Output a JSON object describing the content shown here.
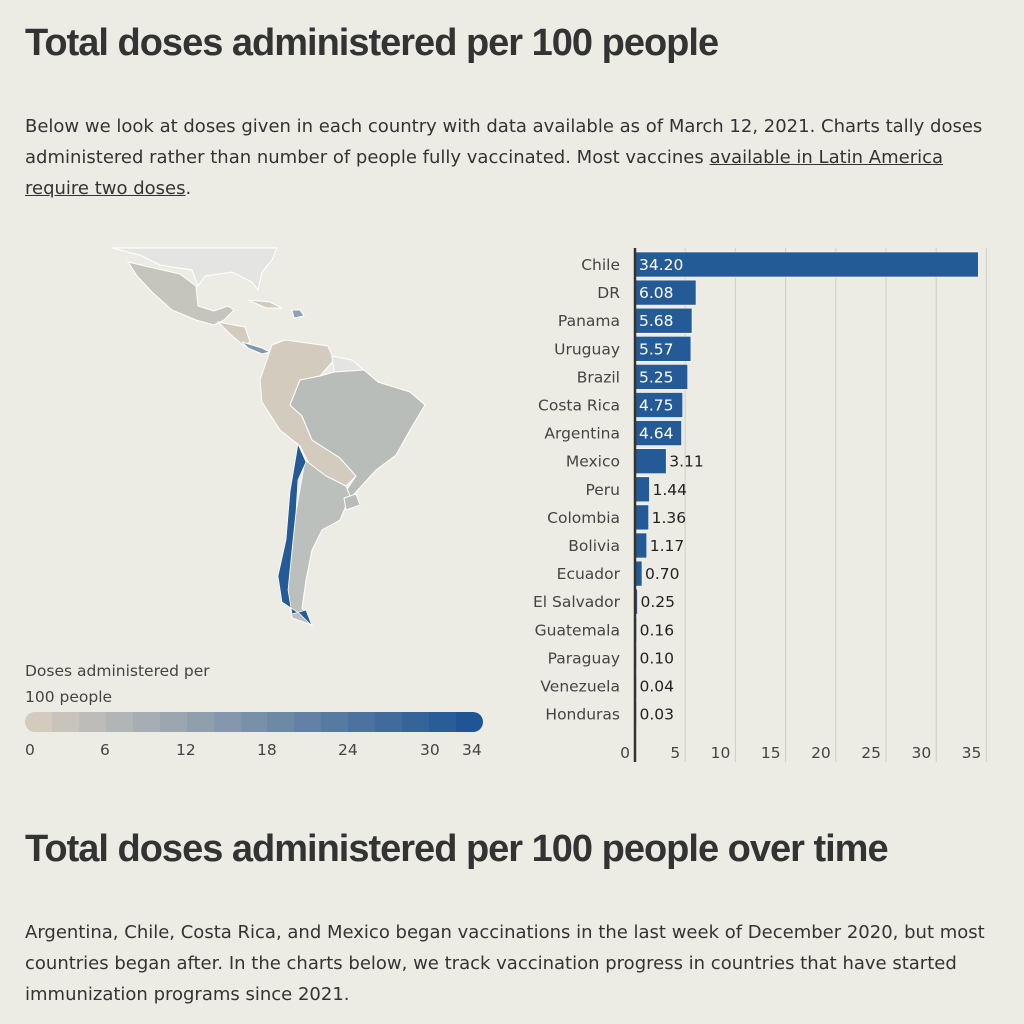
{
  "section1": {
    "title": "Total doses administered per 100 people",
    "intro_before": "Below we look at doses given in each country with data available as of March 12, 2021. Charts tally doses administered rather than number of people fully vaccinated. Most vaccines ",
    "intro_link": "available in Latin America require two doses",
    "intro_after": "."
  },
  "legend": {
    "title_line1": "Doses administered per",
    "title_line2": "100 people",
    "ticks": [
      "0",
      "6",
      "12",
      "18",
      "24",
      "30",
      "34"
    ],
    "color_low": "#d3cbbe",
    "color_high": "#1f5594"
  },
  "section2": {
    "title": "Total doses administered per 100 people over time",
    "intro": "Argentina, Chile, Costa Rica, and Mexico began vaccinations in the last week of December 2020, but most countries began after. In the charts below, we track vaccination progress in countries that have started immunization programs since 2021."
  },
  "chart_data": {
    "type": "bar",
    "orientation": "horizontal",
    "categories": [
      "Chile",
      "DR",
      "Panama",
      "Uruguay",
      "Brazil",
      "Costa Rica",
      "Argentina",
      "Mexico",
      "Peru",
      "Colombia",
      "Bolivia",
      "Ecuador",
      "El Salvador",
      "Guatemala",
      "Paraguay",
      "Venezuela",
      "Honduras"
    ],
    "values": [
      34.2,
      6.08,
      5.68,
      5.57,
      5.25,
      4.75,
      4.64,
      3.11,
      1.44,
      1.36,
      1.17,
      0.7,
      0.25,
      0.16,
      0.1,
      0.04,
      0.03
    ],
    "labels": [
      "34.20",
      "6.08",
      "5.68",
      "5.57",
      "5.25",
      "4.75",
      "4.64",
      "3.11",
      "1.44",
      "1.36",
      "1.17",
      "0.70",
      "0.25",
      "0.16",
      "0.10",
      "0.04",
      "0.03"
    ],
    "xticks": [
      "0",
      "5",
      "10",
      "15",
      "20",
      "25",
      "30",
      "35"
    ],
    "xlim": [
      0,
      35
    ],
    "grid": true,
    "bar_color": "#245b96"
  }
}
